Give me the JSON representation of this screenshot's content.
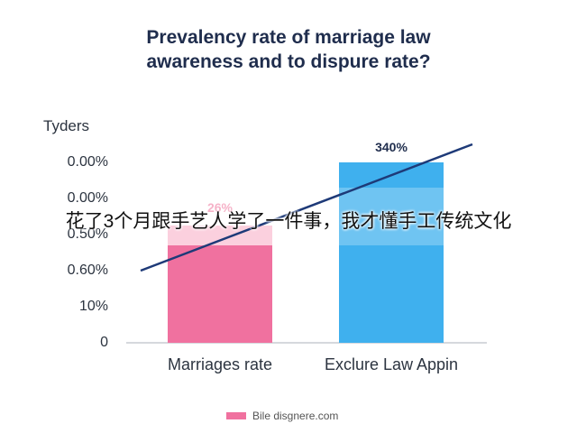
{
  "chart_data": {
    "type": "bar",
    "title_lines": [
      "Prevalency rate of marriage law",
      "awareness and to dispure rate?"
    ],
    "y_axis_label": "Tyders",
    "ylim": [
      0,
      5.5
    ],
    "yticks": [
      {
        "value": 0,
        "label": "0"
      },
      {
        "value": 1,
        "label": "10%"
      },
      {
        "value": 2,
        "label": "0.60%"
      },
      {
        "value": 3,
        "label": "0.50%"
      },
      {
        "value": 4,
        "label": "0.00%"
      },
      {
        "value": 5,
        "label": "0.00%"
      }
    ],
    "categories": [
      "Marriages rate",
      "Exclure Law Appin"
    ],
    "series": [
      {
        "name": "Bile disgnere.com",
        "color": "#f0719f",
        "values": [
          2.7,
          5.0
        ]
      },
      {
        "name": null,
        "color": "#fbd0de",
        "values": [
          0.55,
          null
        ]
      }
    ],
    "bar_colors": [
      "#f0719f",
      "#3fb0ee"
    ],
    "annotations": [
      "26%",
      "340%"
    ],
    "trend": {
      "color": "#1e3a78",
      "x": [
        0.04,
        0.96
      ],
      "values": [
        2.0,
        5.5
      ],
      "xlim": [
        0,
        1
      ]
    },
    "overlay_text": "花了3个月跟手艺人学了一件事，我才懂手工传统文化"
  }
}
